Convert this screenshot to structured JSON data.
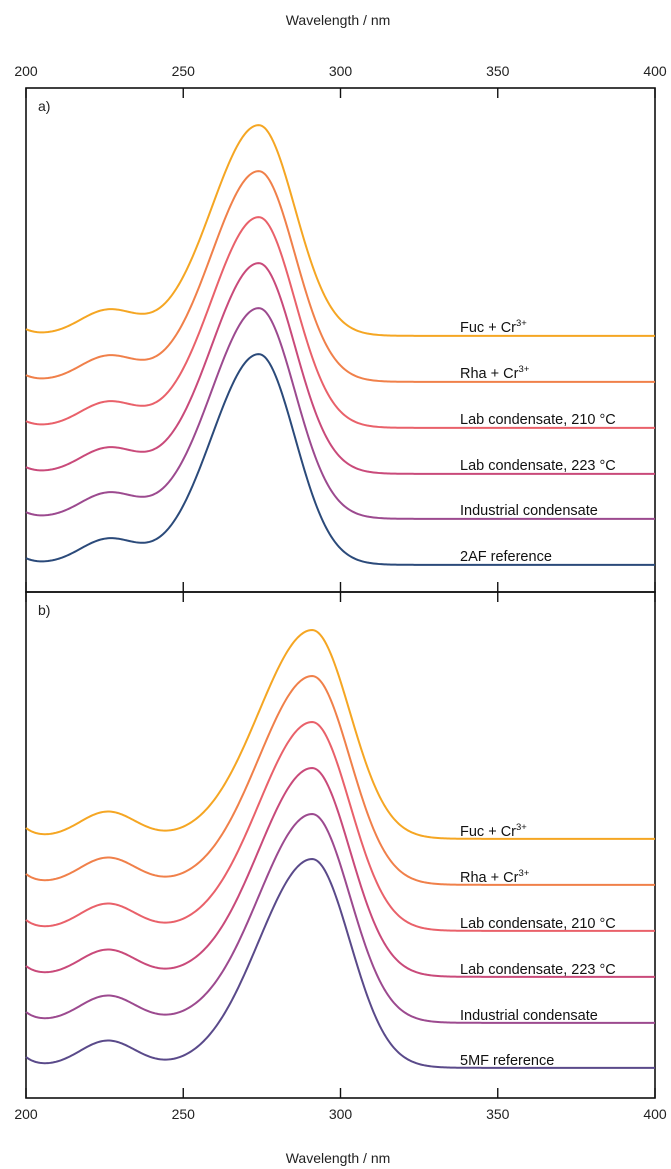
{
  "chart_data": [
    {
      "type": "line",
      "panel_label": "a)",
      "xlabel": "Wavelength / nm",
      "xlim": [
        200,
        400
      ],
      "xticks": [
        200,
        250,
        300,
        350,
        400
      ],
      "curve": {
        "valley1_x": 205,
        "shoulder_x": 226,
        "valley2_x": 240,
        "peak_x": 274,
        "sigma_left": 15,
        "sigma_right": 11.5,
        "shoulder_rel": 0.12,
        "valley1_rel": 0.03,
        "valley2_rel": 0.015
      },
      "series": [
        {
          "name": "Fuc + Cr",
          "superscript": "3+",
          "color": "#f5a623",
          "order": 0
        },
        {
          "name": "Rha + Cr",
          "superscript": "3+",
          "color": "#f0804a",
          "order": 1
        },
        {
          "name": "Lab condensate, 210 °C",
          "superscript": "",
          "color": "#e9616a",
          "order": 2
        },
        {
          "name": "Lab condensate, 223 °C",
          "superscript": "",
          "color": "#c94a7a",
          "order": 3
        },
        {
          "name": "Industrial condensate",
          "superscript": "",
          "color": "#9c4a8f",
          "order": 4
        },
        {
          "name": "2AF reference",
          "superscript": "",
          "color": "#2b4a7a",
          "order": 5
        }
      ]
    },
    {
      "type": "line",
      "panel_label": "b)",
      "xlabel": "Wavelength / nm",
      "xlim": [
        200,
        400
      ],
      "xticks": [
        200,
        250,
        300,
        350,
        400
      ],
      "curve": {
        "valley1_x": 210,
        "shoulder_x": 226,
        "valley2_x": 245,
        "peak_x": 291,
        "sigma_left": 17,
        "sigma_right": 12,
        "shoulder_rel": 0.13,
        "valley1_rel": 0.05,
        "valley2_rel": 0.02
      },
      "series": [
        {
          "name": "Fuc + Cr",
          "superscript": "3+",
          "color": "#f5a623",
          "order": 0
        },
        {
          "name": "Rha + Cr",
          "superscript": "3+",
          "color": "#f0804a",
          "order": 1
        },
        {
          "name": "Lab condensate, 210 °C",
          "superscript": "",
          "color": "#e9616a",
          "order": 2
        },
        {
          "name": "Lab condensate, 223 °C",
          "superscript": "",
          "color": "#c94a7a",
          "order": 3
        },
        {
          "name": "Industrial condensate",
          "superscript": "",
          "color": "#9c4a8f",
          "order": 4
        },
        {
          "name": "5MF reference",
          "superscript": "",
          "color": "#5a4a8a",
          "order": 5
        }
      ]
    }
  ]
}
